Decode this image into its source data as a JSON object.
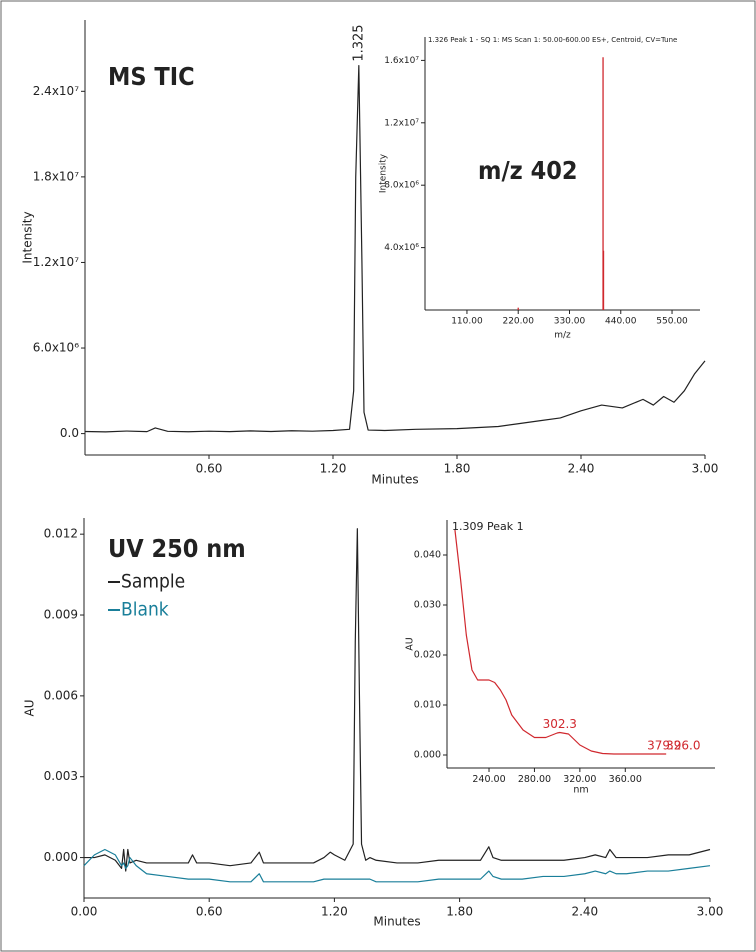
{
  "chart_data": [
    {
      "type": "line",
      "annotation": "MS TIC",
      "y_label": "Intensity",
      "x_label": "Minutes",
      "xlim": [
        0,
        3
      ],
      "xticks": [
        {
          "value": 0.6,
          "label": "0.60"
        },
        {
          "value": 1.2,
          "label": "1.20"
        },
        {
          "value": 1.8,
          "label": "1.80"
        },
        {
          "value": 2.4,
          "label": "2.40"
        },
        {
          "value": 3,
          "label": "3.00"
        }
      ],
      "ylim": [
        -1500000,
        29000000
      ],
      "yticks": [
        {
          "value": 0,
          "label": "0.0"
        },
        {
          "value": 6000000,
          "label": "6.0x10⁶"
        },
        {
          "value": 12000000,
          "label": "1.2x10⁷"
        },
        {
          "value": 18000000,
          "label": "1.8x10⁷"
        },
        {
          "value": 24000000,
          "label": "2.4x10⁷"
        }
      ],
      "x": [
        0,
        0.1,
        0.2,
        0.3,
        0.34,
        0.4,
        0.5,
        0.6,
        0.7,
        0.8,
        0.9,
        1.0,
        1.1,
        1.2,
        1.28,
        1.3,
        1.31,
        1.325,
        1.34,
        1.35,
        1.37,
        1.45,
        1.6,
        1.8,
        2.0,
        2.1,
        2.2,
        2.3,
        2.4,
        2.5,
        2.6,
        2.7,
        2.75,
        2.8,
        2.85,
        2.9,
        2.95,
        3.0
      ],
      "series": [
        {
          "color": "#222222",
          "values": [
            150000,
            120000,
            180000,
            140000,
            400000,
            160000,
            130000,
            170000,
            140000,
            190000,
            150000,
            200000,
            170000,
            220000,
            300000,
            3000000,
            18000000,
            25800000,
            12000000,
            1500000,
            250000,
            220000,
            300000,
            350000,
            500000,
            700000,
            900000,
            1100000,
            1600000,
            2000000,
            1800000,
            2400000,
            2000000,
            2600000,
            2200000,
            3000000,
            4200000,
            5100000
          ]
        }
      ],
      "peak_labels": [
        {
          "x": 1.325,
          "label": "1.325",
          "color": "#222222"
        }
      ]
    },
    {
      "type": "bar",
      "title": "1.326 Peak 1 - SQ 1: MS Scan 1: 50.00-600.00 ES+, Centroid, CV=Tune",
      "annotation": "m/z 402",
      "y_label": "Intensity",
      "x_label": "m/z",
      "xlim": [
        20,
        610
      ],
      "xticks": [
        {
          "value": 110,
          "label": "110.00"
        },
        {
          "value": 220,
          "label": "220.00"
        },
        {
          "value": 330,
          "label": "330.00"
        },
        {
          "value": 440,
          "label": "440.00"
        },
        {
          "value": 550,
          "label": "550.00"
        }
      ],
      "ylim": [
        0,
        17500000
      ],
      "yticks": [
        {
          "value": 4000000,
          "label": "4.0x10⁶"
        },
        {
          "value": 8000000,
          "label": "8.0x10⁶"
        },
        {
          "value": 12000000,
          "label": "1.2x10⁷"
        },
        {
          "value": 16000000,
          "label": "1.6x10⁷"
        }
      ],
      "x": [
        220,
        402,
        403
      ],
      "series": [
        {
          "color": "#d0282e",
          "values": [
            150000,
            16200000,
            3800000
          ]
        }
      ]
    },
    {
      "type": "line",
      "annotation": "UV 250 nm",
      "y_label": "AU",
      "x_label": "Minutes",
      "xlim": [
        0,
        3
      ],
      "xticks": [
        {
          "value": 0,
          "label": "0.00"
        },
        {
          "value": 0.6,
          "label": "0.60"
        },
        {
          "value": 1.2,
          "label": "1.20"
        },
        {
          "value": 1.8,
          "label": "1.80"
        },
        {
          "value": 2.4,
          "label": "2.40"
        },
        {
          "value": 3,
          "label": "3.00"
        }
      ],
      "ylim": [
        -0.0015,
        0.0126
      ],
      "yticks": [
        {
          "value": 0,
          "label": "0.000"
        },
        {
          "value": 0.003,
          "label": "0.003"
        },
        {
          "value": 0.006,
          "label": "0.006"
        },
        {
          "value": 0.009,
          "label": "0.009"
        },
        {
          "value": 0.012,
          "label": "0.012"
        }
      ],
      "x": [
        0,
        0.05,
        0.1,
        0.15,
        0.18,
        0.19,
        0.2,
        0.21,
        0.22,
        0.25,
        0.3,
        0.4,
        0.5,
        0.52,
        0.54,
        0.6,
        0.7,
        0.8,
        0.84,
        0.86,
        0.9,
        1.0,
        1.1,
        1.15,
        1.18,
        1.2,
        1.25,
        1.29,
        1.3,
        1.31,
        1.32,
        1.33,
        1.35,
        1.37,
        1.4,
        1.5,
        1.6,
        1.7,
        1.8,
        1.9,
        1.94,
        1.96,
        2.0,
        2.1,
        2.2,
        2.3,
        2.4,
        2.45,
        2.5,
        2.52,
        2.55,
        2.6,
        2.7,
        2.8,
        2.9,
        3.0
      ],
      "series": [
        {
          "name": "Sample",
          "color": "#222222",
          "values": [
            0,
            0,
            0.0001,
            -0.0001,
            -0.0004,
            0.0003,
            -0.0005,
            0.0003,
            -0.0002,
            -0.0001,
            -0.0002,
            -0.0002,
            -0.0002,
            0.0001,
            -0.0002,
            -0.0002,
            -0.0003,
            -0.0002,
            0.0002,
            -0.0002,
            -0.0002,
            -0.0002,
            -0.0002,
            0,
            0.0002,
            0.0001,
            -0.0001,
            0.0005,
            0.008,
            0.0122,
            0.006,
            0.0005,
            -0.0001,
            0,
            -0.0001,
            -0.0002,
            -0.0002,
            -0.0001,
            -0.0001,
            -0.0001,
            0.0004,
            0,
            -0.0001,
            -0.0001,
            -0.0001,
            -0.0001,
            0,
            0.0001,
            0,
            0.0003,
            0,
            0,
            0,
            0.0001,
            0.0001,
            0.0003
          ]
        },
        {
          "name": "Blank",
          "color": "#1a7f9a",
          "values": [
            -0.0003,
            0.0001,
            0.0003,
            0.0001,
            -0.0003,
            -0.0002,
            -0.0004,
            -0.0003,
            0,
            -0.0003,
            -0.0006,
            -0.0007,
            -0.0008,
            -0.0008,
            -0.0008,
            -0.0008,
            -0.0009,
            -0.0009,
            -0.0006,
            -0.0009,
            -0.0009,
            -0.0009,
            -0.0009,
            -0.0008,
            -0.0008,
            -0.0008,
            -0.0008,
            -0.0008,
            -0.0008,
            -0.0008,
            -0.0008,
            -0.0008,
            -0.0008,
            -0.0008,
            -0.0009,
            -0.0009,
            -0.0009,
            -0.0008,
            -0.0008,
            -0.0008,
            -0.0005,
            -0.0007,
            -0.0008,
            -0.0008,
            -0.0007,
            -0.0007,
            -0.0006,
            -0.0005,
            -0.0006,
            -0.0005,
            -0.0006,
            -0.0006,
            -0.0005,
            -0.0005,
            -0.0004,
            -0.0003
          ]
        }
      ]
    },
    {
      "type": "line",
      "title": "1.309 Peak 1",
      "y_label": "AU",
      "x_label": "nm",
      "xlim": [
        203,
        439
      ],
      "xticks": [
        {
          "value": 240,
          "label": "240.00"
        },
        {
          "value": 280,
          "label": "280.00"
        },
        {
          "value": 320,
          "label": "320.00"
        },
        {
          "value": 360,
          "label": "360.00"
        }
      ],
      "ylim": [
        -0.0026,
        0.047
      ],
      "yticks": [
        {
          "value": 0,
          "label": "0.000"
        },
        {
          "value": 0.01,
          "label": "0.010"
        },
        {
          "value": 0.02,
          "label": "0.020"
        },
        {
          "value": 0.03,
          "label": "0.030"
        },
        {
          "value": 0.04,
          "label": "0.040"
        }
      ],
      "x": [
        210,
        215,
        220,
        225,
        230,
        235,
        240,
        245,
        250,
        255,
        260,
        270,
        280,
        290,
        300,
        302.3,
        310,
        320,
        330,
        340,
        350,
        360,
        379.2,
        396
      ],
      "series": [
        {
          "color": "#d0282e",
          "values": [
            0.045,
            0.035,
            0.024,
            0.017,
            0.015,
            0.015,
            0.015,
            0.0145,
            0.013,
            0.011,
            0.008,
            0.005,
            0.0035,
            0.0035,
            0.0044,
            0.0045,
            0.0042,
            0.002,
            0.0008,
            0.0003,
            0.0002,
            0.0002,
            0.0002,
            0.0002
          ]
        }
      ],
      "peak_labels": [
        {
          "x": 302.3,
          "label": "302.3",
          "color": "#d0282e"
        },
        {
          "x": 379.2,
          "label": "379.2",
          "color": "#d0282e"
        },
        {
          "x": 396,
          "label": "396.0",
          "color": "#d0282e"
        }
      ]
    }
  ]
}
